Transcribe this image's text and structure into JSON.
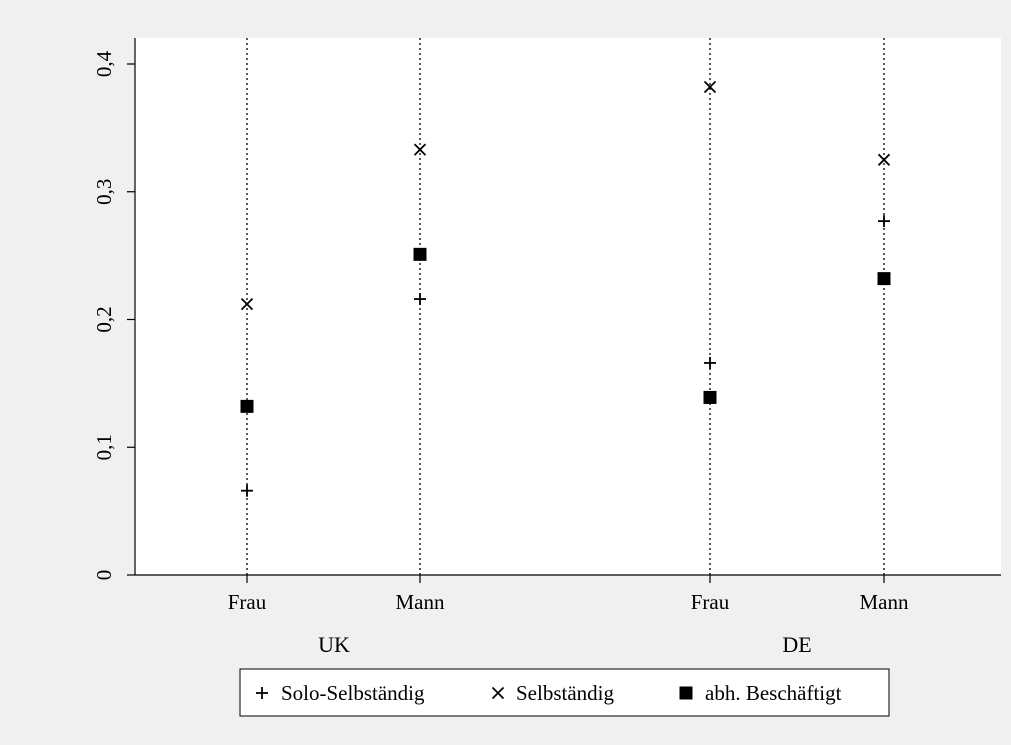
{
  "chart_data": {
    "type": "scatter",
    "title": "",
    "xlabel": "",
    "ylabel": "",
    "ylim": [
      0,
      0.4
    ],
    "yticks": [
      0,
      0.1,
      0.2,
      0.3,
      0.4
    ],
    "ytick_labels": [
      "0",
      "0,1",
      "0,2",
      "0,3",
      "0,4"
    ],
    "grid": false,
    "groups": [
      {
        "label": "UK",
        "categories": [
          "Frau",
          "Mann"
        ]
      },
      {
        "label": "DE",
        "categories": [
          "Frau",
          "Mann"
        ]
      }
    ],
    "category_labels": [
      "Frau",
      "Mann",
      "Frau",
      "Mann"
    ],
    "category_lines": "dotted vertical",
    "legend_position": "bottom",
    "series": [
      {
        "name": "Solo-Selbständig",
        "marker": "plus",
        "values": [
          0.066,
          0.216,
          0.166,
          0.277
        ]
      },
      {
        "name": "Selbständig",
        "marker": "x",
        "values": [
          0.212,
          0.333,
          0.382,
          0.325
        ]
      },
      {
        "name": "abh. Beschäftigt",
        "marker": "square",
        "values": [
          0.132,
          0.251,
          0.139,
          0.232
        ]
      }
    ],
    "colors": {
      "background": "#f0f0f0",
      "plot_background": "#ffffff",
      "marker": "#000000"
    }
  }
}
